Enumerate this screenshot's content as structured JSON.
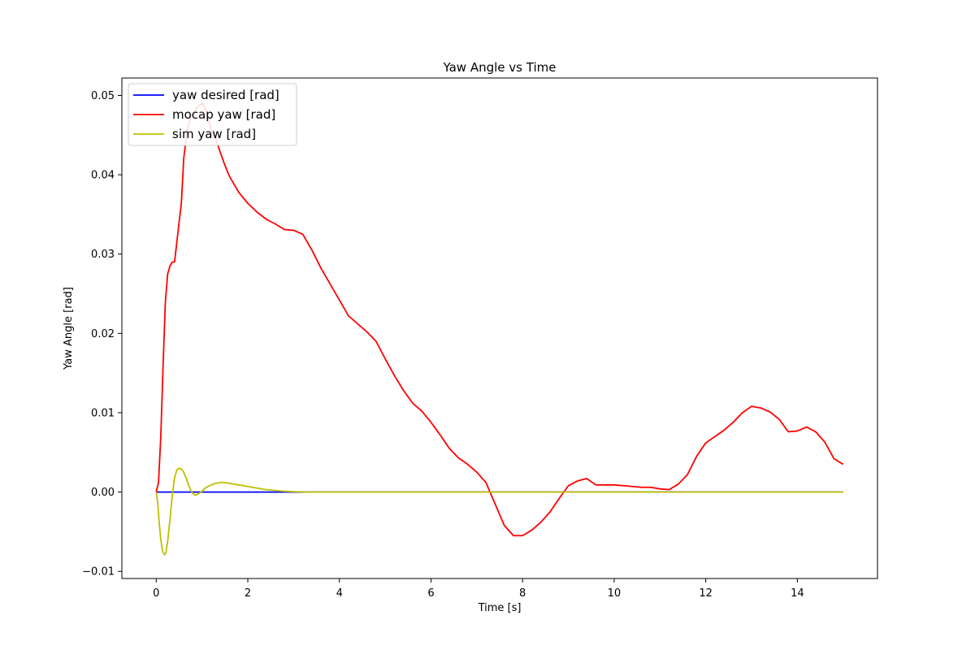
{
  "chart_data": {
    "type": "line",
    "title": "Yaw Angle vs Time",
    "xlabel": "Time [s]",
    "ylabel": "Yaw Angle [rad]",
    "xlim": [
      -0.75,
      15.75
    ],
    "ylim": [
      -0.0109,
      0.0522
    ],
    "xticks": [
      0,
      2,
      4,
      6,
      8,
      10,
      12,
      14
    ],
    "xtick_labels": [
      "0",
      "2",
      "4",
      "6",
      "8",
      "10",
      "12",
      "14"
    ],
    "yticks": [
      -0.01,
      0.0,
      0.01,
      0.02,
      0.03,
      0.04,
      0.05
    ],
    "ytick_labels": [
      "−0.01",
      "0.00",
      "0.01",
      "0.02",
      "0.03",
      "0.04",
      "0.05"
    ],
    "grid": false,
    "legend_position": "upper-left",
    "series": [
      {
        "name": "yaw desired [rad]",
        "color": "#0000ff",
        "x": [
          0,
          15
        ],
        "y": [
          0.0,
          0.0
        ]
      },
      {
        "name": "mocap yaw [rad]",
        "color": "#ff0000",
        "x": [
          0.0,
          0.05,
          0.1,
          0.15,
          0.2,
          0.25,
          0.3,
          0.35,
          0.4,
          0.45,
          0.5,
          0.55,
          0.6,
          0.65,
          0.7,
          0.75,
          0.8,
          0.85,
          0.9,
          0.95,
          1.0,
          1.05,
          1.1,
          1.15,
          1.2,
          1.3,
          1.4,
          1.5,
          1.6,
          1.8,
          2.0,
          2.2,
          2.4,
          2.6,
          2.8,
          3.0,
          3.2,
          3.4,
          3.6,
          3.8,
          4.0,
          4.2,
          4.4,
          4.6,
          4.8,
          5.0,
          5.2,
          5.4,
          5.6,
          5.8,
          6.0,
          6.2,
          6.4,
          6.6,
          6.8,
          7.0,
          7.2,
          7.4,
          7.6,
          7.8,
          8.0,
          8.2,
          8.4,
          8.6,
          8.8,
          9.0,
          9.2,
          9.4,
          9.6,
          9.8,
          10.0,
          10.2,
          10.4,
          10.6,
          10.8,
          11.0,
          11.2,
          11.4,
          11.6,
          11.8,
          12.0,
          12.2,
          12.4,
          12.6,
          12.8,
          13.0,
          13.2,
          13.4,
          13.6,
          13.8,
          14.0,
          14.2,
          14.4,
          14.6,
          14.8,
          15.0
        ],
        "y": [
          0.0,
          0.0012,
          0.007,
          0.016,
          0.024,
          0.0275,
          0.0285,
          0.029,
          0.029,
          0.0315,
          0.034,
          0.0365,
          0.042,
          0.0445,
          0.046,
          0.0472,
          0.0476,
          0.0481,
          0.0485,
          0.0488,
          0.049,
          0.0486,
          0.0478,
          0.0468,
          0.0458,
          0.0445,
          0.0428,
          0.0412,
          0.0398,
          0.0378,
          0.0364,
          0.0353,
          0.0344,
          0.0338,
          0.0331,
          0.033,
          0.0325,
          0.0305,
          0.0282,
          0.0262,
          0.0242,
          0.0222,
          0.0212,
          0.0202,
          0.019,
          0.0168,
          0.0147,
          0.0128,
          0.0112,
          0.0102,
          0.0088,
          0.0072,
          0.0055,
          0.0043,
          0.0035,
          0.0025,
          0.0012,
          -0.0015,
          -0.0042,
          -0.0055,
          -0.0055,
          -0.0048,
          -0.0038,
          -0.0025,
          -0.0008,
          0.0008,
          0.0014,
          0.0017,
          0.0009,
          0.0009,
          0.0009,
          0.0008,
          0.0007,
          0.0006,
          0.0006,
          0.0004,
          0.0003,
          0.001,
          0.0022,
          0.0045,
          0.0062,
          0.007,
          0.0078,
          0.0088,
          0.01,
          0.0108,
          0.0106,
          0.0101,
          0.0092,
          0.0076,
          0.0077,
          0.0082,
          0.0076,
          0.0063,
          0.0042,
          0.0035
        ]
      },
      {
        "name": "sim yaw [rad]",
        "color": "#bfbf00",
        "x": [
          0.0,
          0.03,
          0.06,
          0.1,
          0.14,
          0.18,
          0.21,
          0.25,
          0.3,
          0.35,
          0.4,
          0.45,
          0.5,
          0.55,
          0.6,
          0.65,
          0.7,
          0.75,
          0.8,
          0.85,
          0.9,
          0.95,
          1.0,
          1.05,
          1.1,
          1.2,
          1.3,
          1.4,
          1.5,
          1.6,
          1.7,
          1.8,
          1.9,
          2.0,
          2.2,
          2.4,
          2.6,
          2.8,
          3.0,
          3.3,
          3.6,
          4.0,
          5.0,
          6.0,
          8.0,
          10.0,
          12.0,
          15.0
        ],
        "y": [
          0.0,
          -0.0012,
          -0.0035,
          -0.006,
          -0.0075,
          -0.0079,
          -0.0077,
          -0.0062,
          -0.0035,
          -0.0005,
          0.0018,
          0.0028,
          0.003,
          0.0029,
          0.0025,
          0.0018,
          0.001,
          0.0003,
          -0.0002,
          -0.0004,
          -0.0003,
          -0.0001,
          0.0001,
          0.0004,
          0.0006,
          0.0009,
          0.0011,
          0.0012,
          0.0012,
          0.0011,
          0.001,
          0.0009,
          0.0008,
          0.0007,
          0.0005,
          0.0003,
          0.0002,
          0.0001,
          5e-05,
          0.0,
          0.0,
          0.0,
          0.0,
          0.0,
          0.0,
          0.0,
          0.0,
          0.0
        ]
      }
    ]
  }
}
